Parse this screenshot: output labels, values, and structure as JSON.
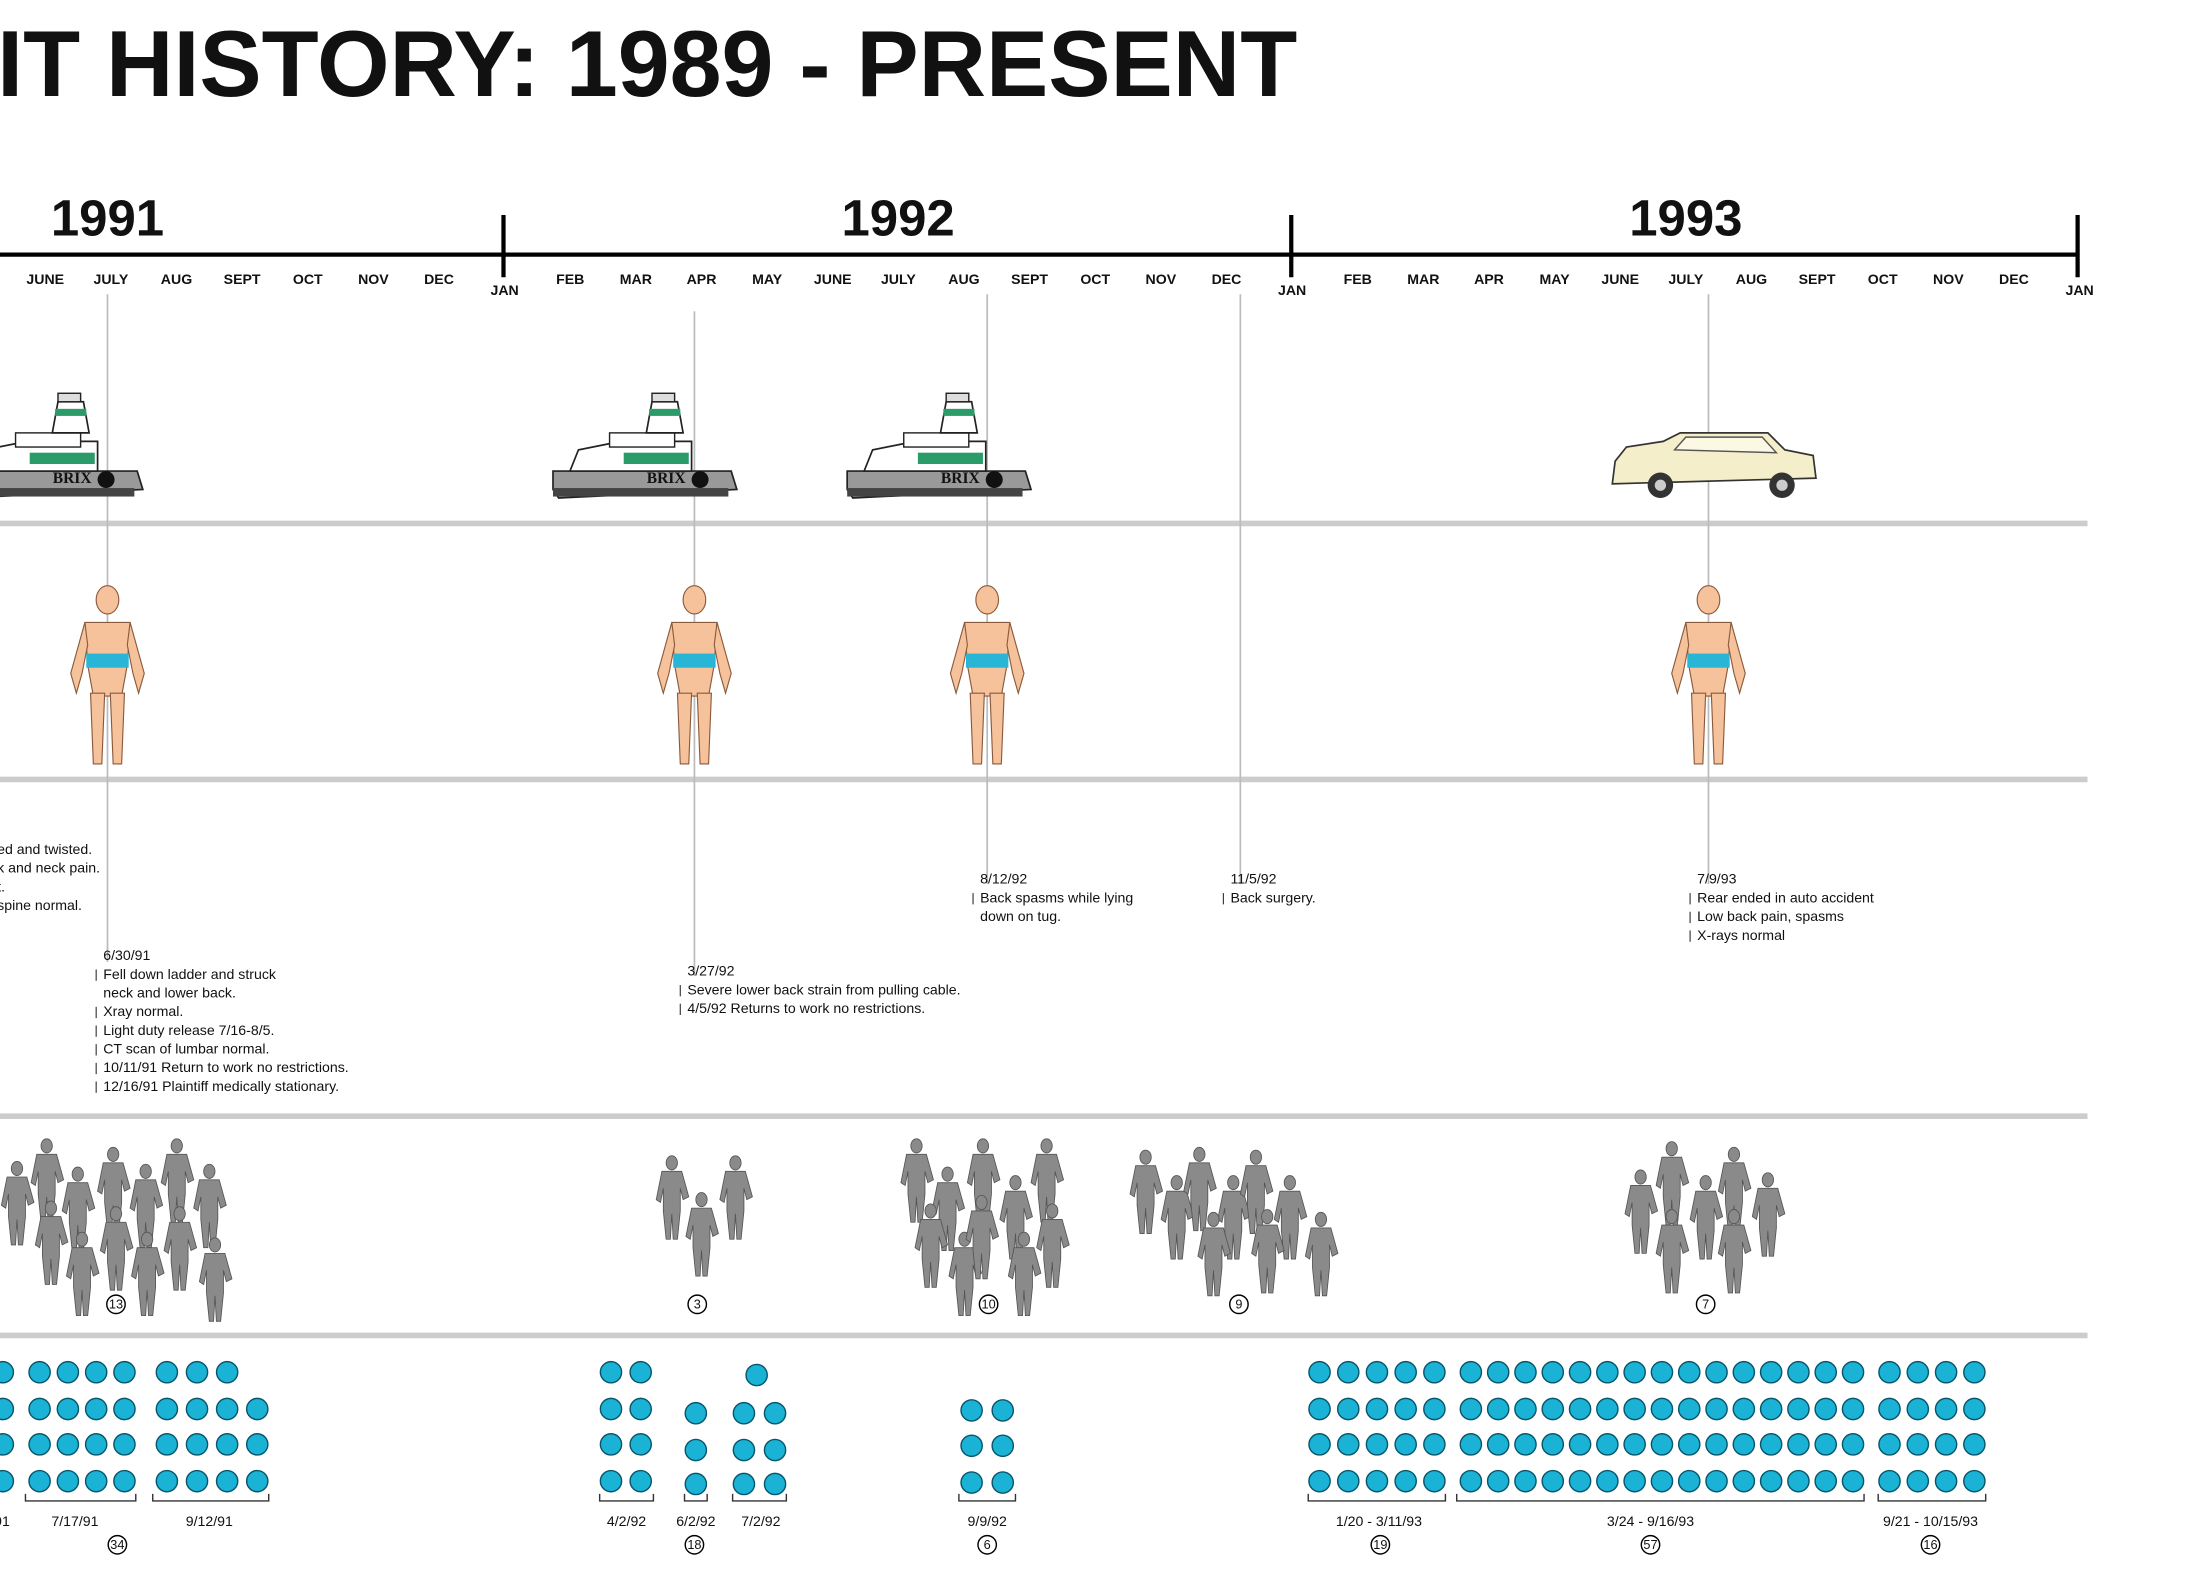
{
  "header": {
    "title": "IT HISTORY: 1989 - PRESENT"
  },
  "timeline": {
    "years": [
      "1991",
      "1992",
      "1993"
    ],
    "months": [
      "JUNE",
      "JULY",
      "AUG",
      "SEPT",
      "OCT",
      "NOV",
      "DEC",
      "JAN",
      "FEB",
      "MAR",
      "APR",
      "MAY",
      "JUNE",
      "JULY",
      "AUG",
      "SEPT",
      "OCT",
      "NOV",
      "DEC",
      "JAN",
      "FEB",
      "MAR",
      "APR",
      "MAY",
      "JUNE",
      "JULY",
      "AUG",
      "SEPT",
      "OCT",
      "NOV",
      "DEC",
      "JAN"
    ]
  },
  "icons": {
    "boat_label": "BRIX"
  },
  "notes": [
    {
      "date": "",
      "items": [
        [
          "ed and twisted."
        ],
        [
          "k and neck pain."
        ],
        [
          "t."
        ],
        [
          "spine normal."
        ]
      ]
    },
    {
      "date": "6/30/91",
      "items": [
        [
          "Fell down ladder and struck",
          "neck and lower back."
        ],
        [
          "Xray normal."
        ],
        [
          "Light duty release  7/16-8/5."
        ],
        [
          "CT scan of lumbar normal."
        ],
        [
          "10/11/91 Return to work no restrictions."
        ],
        [
          "12/16/91 Plaintiff medically stationary."
        ]
      ]
    },
    {
      "date": "3/27/92",
      "items": [
        [
          "Severe lower back strain from pulling cable."
        ],
        [
          "4/5/92 Returns to work no restrictions."
        ]
      ]
    },
    {
      "date": "8/12/92",
      "items": [
        [
          "Back spasms while lying",
          "down on tug."
        ]
      ]
    },
    {
      "date": "11/5/92",
      "items": [
        [
          "Back surgery."
        ]
      ]
    },
    {
      "date": "7/9/93",
      "items": [
        [
          "Rear ended in auto accident"
        ],
        [
          "Low back pain, spasms"
        ],
        [
          "X-rays normal"
        ]
      ]
    }
  ],
  "crowds": [
    "13",
    "3",
    "10",
    "9",
    "7"
  ],
  "visits": {
    "labels": [
      "/91",
      "7/17/91",
      "9/12/91",
      "4/2/92",
      "6/2/92",
      "7/2/92",
      "9/9/92",
      "1/20 - 3/11/93",
      "3/24 - 9/16/93",
      "9/21 - 10/15/93"
    ],
    "totals": [
      "34",
      "18",
      "6",
      "19",
      "57",
      "16"
    ]
  }
}
